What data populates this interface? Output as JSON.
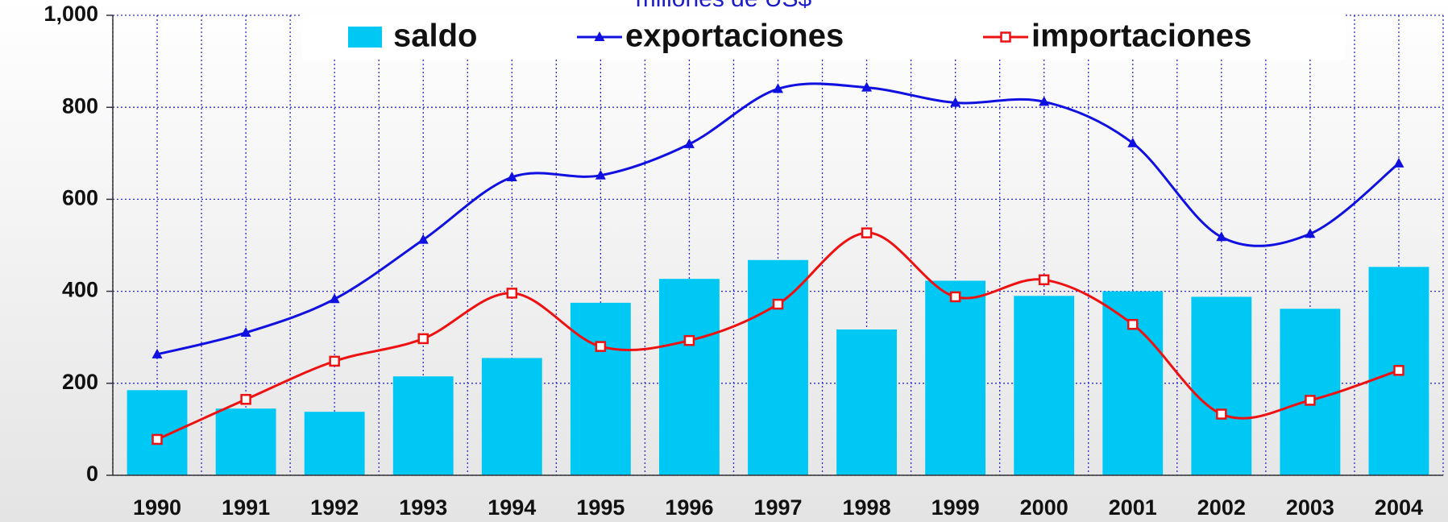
{
  "chart_data": {
    "type": "bar_line",
    "subtitle": "millones de US$",
    "categories": [
      "1990",
      "1991",
      "1992",
      "1993",
      "1994",
      "1995",
      "1996",
      "1997",
      "1998",
      "1999",
      "2000",
      "2001",
      "2002",
      "2003",
      "2004"
    ],
    "series": [
      {
        "name": "saldo",
        "type": "bar",
        "color": "#00c8f5",
        "values": [
          185,
          145,
          138,
          215,
          255,
          375,
          427,
          468,
          317,
          423,
          390,
          400,
          388,
          362,
          453
        ]
      },
      {
        "name": "exportaciones",
        "type": "line",
        "marker": "triangle",
        "color": "#1010e0",
        "values": [
          263,
          310,
          383,
          512,
          648,
          652,
          720,
          840,
          843,
          810,
          812,
          722,
          518,
          525,
          678
        ]
      },
      {
        "name": "importaciones",
        "type": "line",
        "marker": "square",
        "color": "#ee1111",
        "values": [
          78,
          165,
          248,
          297,
          396,
          280,
          293,
          372,
          527,
          388,
          425,
          328,
          133,
          163,
          228
        ]
      }
    ],
    "ylim": [
      0,
      1000
    ],
    "yticks": [
      0,
      200,
      400,
      600,
      800,
      {
        "value": 1000,
        "label": "1,000"
      }
    ],
    "grid": true
  }
}
